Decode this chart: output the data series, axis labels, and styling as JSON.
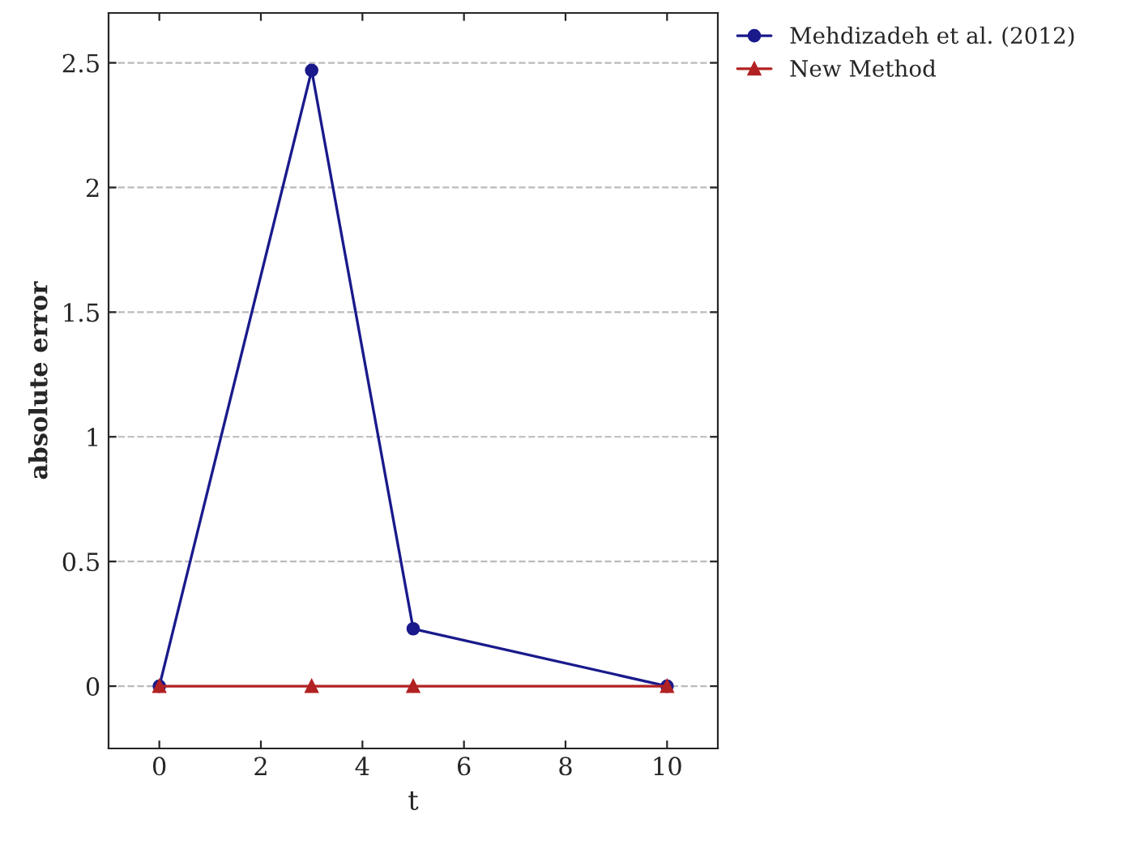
{
  "chart_data": {
    "type": "line",
    "xlabel": "t",
    "ylabel": "absolute error",
    "xlim": [
      -1,
      11
    ],
    "xticks": [
      0,
      2,
      4,
      6,
      8,
      10
    ],
    "ylim": [
      -0.25,
      2.7
    ],
    "yticks": [
      0,
      0.5,
      1,
      1.5,
      2,
      2.5
    ],
    "grid": "y",
    "legend": "top right",
    "line_style": "solid",
    "series": [
      {
        "name": "Mehdizadeh et al. (2012)",
        "color": "#1a1a8c",
        "marker": "circle",
        "x": [
          0,
          3,
          5,
          10
        ],
        "values": [
          0,
          2.47,
          0.23,
          0
        ]
      },
      {
        "name": "New Method",
        "color": "#b22222",
        "marker": "triangle",
        "x": [
          0,
          3,
          5,
          10
        ],
        "values": [
          0,
          0,
          0,
          0
        ]
      }
    ]
  }
}
